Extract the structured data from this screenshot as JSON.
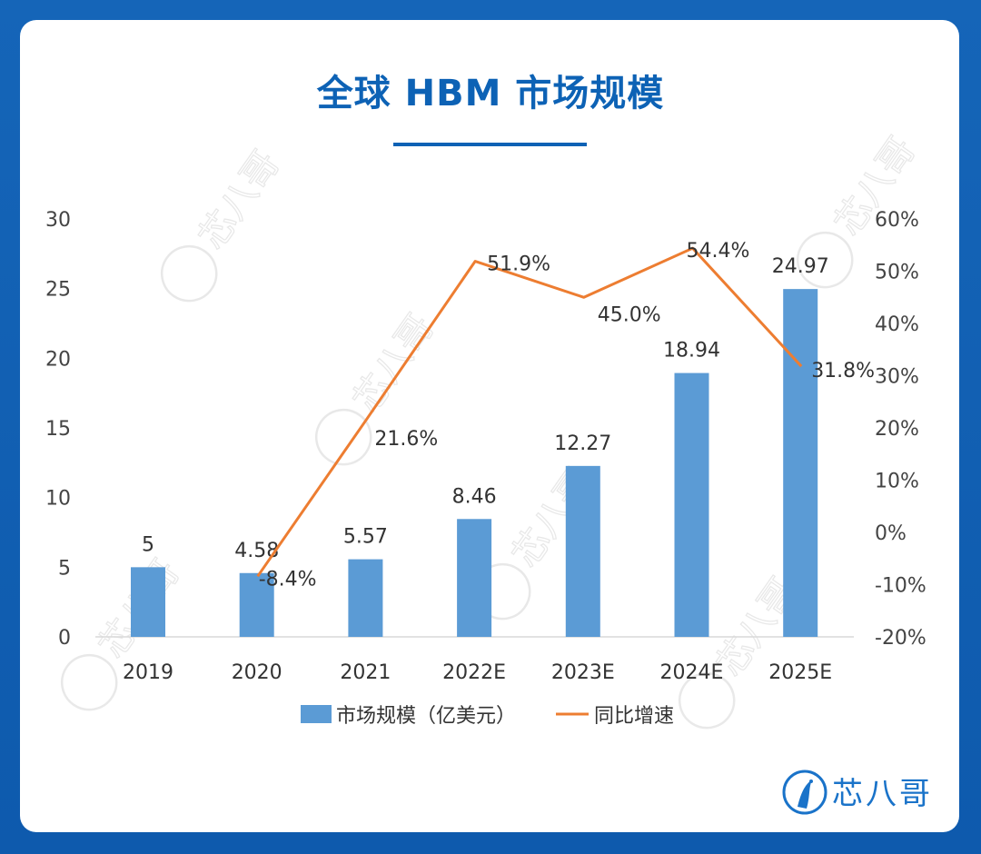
{
  "title": "全球 HBM 市场规模",
  "brand": {
    "name": "芯八哥",
    "watermark": "芯八哥"
  },
  "colors": {
    "bar": "#5b9bd5",
    "line": "#ed7d31",
    "title": "#0d62b5",
    "background": "#1565b8"
  },
  "chart_data": {
    "type": "bar+line",
    "categories": [
      "2019",
      "2020",
      "2021",
      "2022E",
      "2023E",
      "2024E",
      "2025E"
    ],
    "series": [
      {
        "name": "市场规模（亿美元）",
        "type": "bar",
        "axis": "left",
        "values": [
          5,
          4.58,
          5.57,
          8.46,
          12.27,
          18.94,
          24.97
        ],
        "labels": [
          "5",
          "4.58",
          "5.57",
          "8.46",
          "12.27",
          "18.94",
          "24.97"
        ]
      },
      {
        "name": "同比增速",
        "type": "line",
        "axis": "right",
        "values": [
          null,
          -8.4,
          21.6,
          51.9,
          45.0,
          54.4,
          31.8
        ],
        "labels": [
          "",
          "-8.4%",
          "21.6%",
          "51.9%",
          "45.0%",
          "54.4%",
          "31.8%"
        ]
      }
    ],
    "y_left": {
      "min": 0,
      "max": 30,
      "ticks": [
        "30",
        "25",
        "20",
        "15",
        "10",
        "5",
        "0"
      ]
    },
    "y_right": {
      "min": -20,
      "max": 60,
      "ticks": [
        "60%",
        "50%",
        "40%",
        "30%",
        "20%",
        "10%",
        "0%",
        "-10%",
        "-20%"
      ]
    },
    "legend": {
      "position": "bottom"
    },
    "grid": false
  }
}
